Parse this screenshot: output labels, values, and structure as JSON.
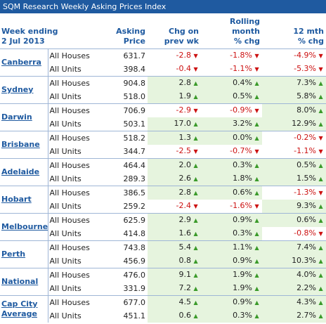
{
  "title": "SQM Research Weekly Asking Prices Index",
  "header": {
    "week_ending_line1": "Week ending",
    "week_ending_line2": "2 Jul 2013",
    "asking_price": "Asking Price",
    "chg_line1": "Chg on",
    "chg_line2": "prev wk",
    "rolling_line1": "Rolling",
    "rolling_line2": "month",
    "rolling_line3": "% chg",
    "m12_line1": "12 mth",
    "m12_line2": "% chg"
  },
  "colors": {
    "header_blue": "#1f5aa0",
    "positive_bg": "#e6f4de",
    "negative_text": "#cc1111",
    "up_arrow": "#3a9a2a"
  },
  "rows": [
    {
      "city": "Canberra",
      "lines": [
        {
          "type": "All Houses",
          "price": "631.7",
          "chg": "-2.8",
          "chg_dir": "down",
          "rolling": "-1.8%",
          "rolling_dir": "down",
          "m12": "-4.9%",
          "m12_dir": "down"
        },
        {
          "type": "All Units",
          "price": "398.4",
          "chg": "-0.4",
          "chg_dir": "down",
          "rolling": "-1.1%",
          "rolling_dir": "down",
          "m12": "-5.3%",
          "m12_dir": "down"
        }
      ]
    },
    {
      "city": "Sydney",
      "lines": [
        {
          "type": "All Houses",
          "price": "904.8",
          "chg": "2.8",
          "chg_dir": "up",
          "rolling": "0.4%",
          "rolling_dir": "up",
          "m12": "7.3%",
          "m12_dir": "up"
        },
        {
          "type": "All Units",
          "price": "518.0",
          "chg": "1.9",
          "chg_dir": "up",
          "rolling": "0.5%",
          "rolling_dir": "up",
          "m12": "5.8%",
          "m12_dir": "up"
        }
      ]
    },
    {
      "city": "Darwin",
      "lines": [
        {
          "type": "All Houses",
          "price": "706.9",
          "chg": "-2.9",
          "chg_dir": "down",
          "rolling": "-0.9%",
          "rolling_dir": "down",
          "m12": "8.0%",
          "m12_dir": "up"
        },
        {
          "type": "All Units",
          "price": "503.1",
          "chg": "17.0",
          "chg_dir": "up",
          "rolling": "3.2%",
          "rolling_dir": "up",
          "m12": "12.9%",
          "m12_dir": "up"
        }
      ]
    },
    {
      "city": "Brisbane",
      "lines": [
        {
          "type": "All Houses",
          "price": "518.2",
          "chg": "1.3",
          "chg_dir": "up",
          "rolling": "0.0%",
          "rolling_dir": "up",
          "m12": "-0.2%",
          "m12_dir": "down"
        },
        {
          "type": "All Units",
          "price": "344.7",
          "chg": "-2.5",
          "chg_dir": "down",
          "rolling": "-0.7%",
          "rolling_dir": "down",
          "m12": "-1.1%",
          "m12_dir": "down"
        }
      ]
    },
    {
      "city": "Adelaide",
      "lines": [
        {
          "type": "All Houses",
          "price": "464.4",
          "chg": "2.0",
          "chg_dir": "up",
          "rolling": "0.3%",
          "rolling_dir": "up",
          "m12": "0.5%",
          "m12_dir": "up"
        },
        {
          "type": "All Units",
          "price": "289.3",
          "chg": "2.6",
          "chg_dir": "up",
          "rolling": "1.8%",
          "rolling_dir": "up",
          "m12": "1.5%",
          "m12_dir": "up"
        }
      ]
    },
    {
      "city": "Hobart",
      "lines": [
        {
          "type": "All Houses",
          "price": "386.5",
          "chg": "2.8",
          "chg_dir": "up",
          "rolling": "0.6%",
          "rolling_dir": "up",
          "m12": "-1.3%",
          "m12_dir": "down"
        },
        {
          "type": "All Units",
          "price": "259.2",
          "chg": "-2.4",
          "chg_dir": "down",
          "rolling": "-1.6%",
          "rolling_dir": "down",
          "m12": "9.3%",
          "m12_dir": "up"
        }
      ]
    },
    {
      "city": "Melbourne",
      "lines": [
        {
          "type": "All Houses",
          "price": "625.9",
          "chg": "2.9",
          "chg_dir": "up",
          "rolling": "0.9%",
          "rolling_dir": "up",
          "m12": "0.6%",
          "m12_dir": "up"
        },
        {
          "type": "All Units",
          "price": "414.8",
          "chg": "1.6",
          "chg_dir": "up",
          "rolling": "0.3%",
          "rolling_dir": "up",
          "m12": "-0.8%",
          "m12_dir": "down"
        }
      ]
    },
    {
      "city": "Perth",
      "lines": [
        {
          "type": "All Houses",
          "price": "743.8",
          "chg": "5.4",
          "chg_dir": "up",
          "rolling": "1.1%",
          "rolling_dir": "up",
          "m12": "7.4%",
          "m12_dir": "up"
        },
        {
          "type": "All Units",
          "price": "456.9",
          "chg": "0.8",
          "chg_dir": "up",
          "rolling": "0.9%",
          "rolling_dir": "up",
          "m12": "10.3%",
          "m12_dir": "up"
        }
      ]
    },
    {
      "city": "National",
      "lines": [
        {
          "type": "All Houses",
          "price": "476.0",
          "chg": "9.1",
          "chg_dir": "up",
          "rolling": "1.9%",
          "rolling_dir": "up",
          "m12": "4.0%",
          "m12_dir": "up"
        },
        {
          "type": "All Units",
          "price": "331.9",
          "chg": "7.2",
          "chg_dir": "up",
          "rolling": "1.9%",
          "rolling_dir": "up",
          "m12": "2.2%",
          "m12_dir": "up"
        }
      ]
    },
    {
      "city": "Cap City Average",
      "lines": [
        {
          "type": "All Houses",
          "price": "677.0",
          "chg": "4.5",
          "chg_dir": "up",
          "rolling": "0.9%",
          "rolling_dir": "up",
          "m12": "4.3%",
          "m12_dir": "up"
        },
        {
          "type": "All Units",
          "price": "451.1",
          "chg": "0.6",
          "chg_dir": "up",
          "rolling": "0.3%",
          "rolling_dir": "up",
          "m12": "2.7%",
          "m12_dir": "up"
        }
      ]
    }
  ]
}
